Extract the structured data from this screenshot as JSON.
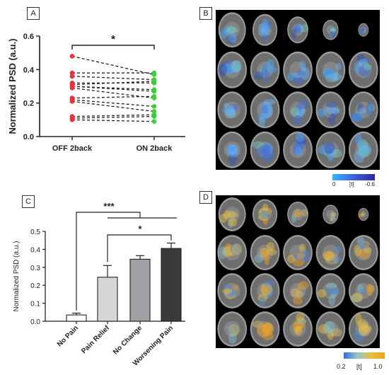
{
  "panels": {
    "a": "A",
    "b": "B",
    "c": "C",
    "d": "D"
  },
  "chart_data": [
    {
      "type": "scatter",
      "panel": "A",
      "style": "paired-lines",
      "ylabel": "Normalized PSD (a.u.)",
      "categories": [
        "OFF 2back",
        "ON 2back"
      ],
      "ylim": [
        0,
        0.6
      ],
      "yticks": [
        "0.0",
        "0.2",
        "0.4",
        "0.6"
      ],
      "significance": "*",
      "series_colors": {
        "OFF 2back": "#e8323c",
        "ON 2back": "#3ccf3c"
      },
      "pairs": [
        [
          0.48,
          0.37
        ],
        [
          0.38,
          0.38
        ],
        [
          0.36,
          0.34
        ],
        [
          0.32,
          0.32
        ],
        [
          0.31,
          0.33
        ],
        [
          0.3,
          0.28
        ],
        [
          0.3,
          0.27
        ],
        [
          0.29,
          0.23
        ],
        [
          0.23,
          0.24
        ],
        [
          0.22,
          0.18
        ],
        [
          0.21,
          0.15
        ],
        [
          0.12,
          0.13
        ],
        [
          0.11,
          0.12
        ],
        [
          0.1,
          0.09
        ]
      ]
    },
    {
      "type": "bar",
      "panel": "C",
      "ylabel": "Normalized PSD (a.u.)",
      "categories": [
        "No Pain",
        "Pain Relief",
        "No Change",
        "Worsening Pain"
      ],
      "values": [
        0.035,
        0.245,
        0.345,
        0.405
      ],
      "errors": [
        0.01,
        0.065,
        0.02,
        0.03
      ],
      "bar_colors": [
        "#ffffff",
        "#d6d6d6",
        "#a0a0a5",
        "#3a3a3a"
      ],
      "ylim": [
        0,
        0.5
      ],
      "yticks": [
        "0.0",
        "0.1",
        "0.2",
        "0.3",
        "0.4",
        "0.5"
      ],
      "significance": [
        "***",
        "*"
      ]
    }
  ],
  "colorbar_b": {
    "min_label": "0",
    "mid_label": "[t]",
    "max_label": "-0.6"
  },
  "colorbar_d": {
    "min_label": "0.2",
    "mid_label": "[t]",
    "max_label": "1.0"
  }
}
